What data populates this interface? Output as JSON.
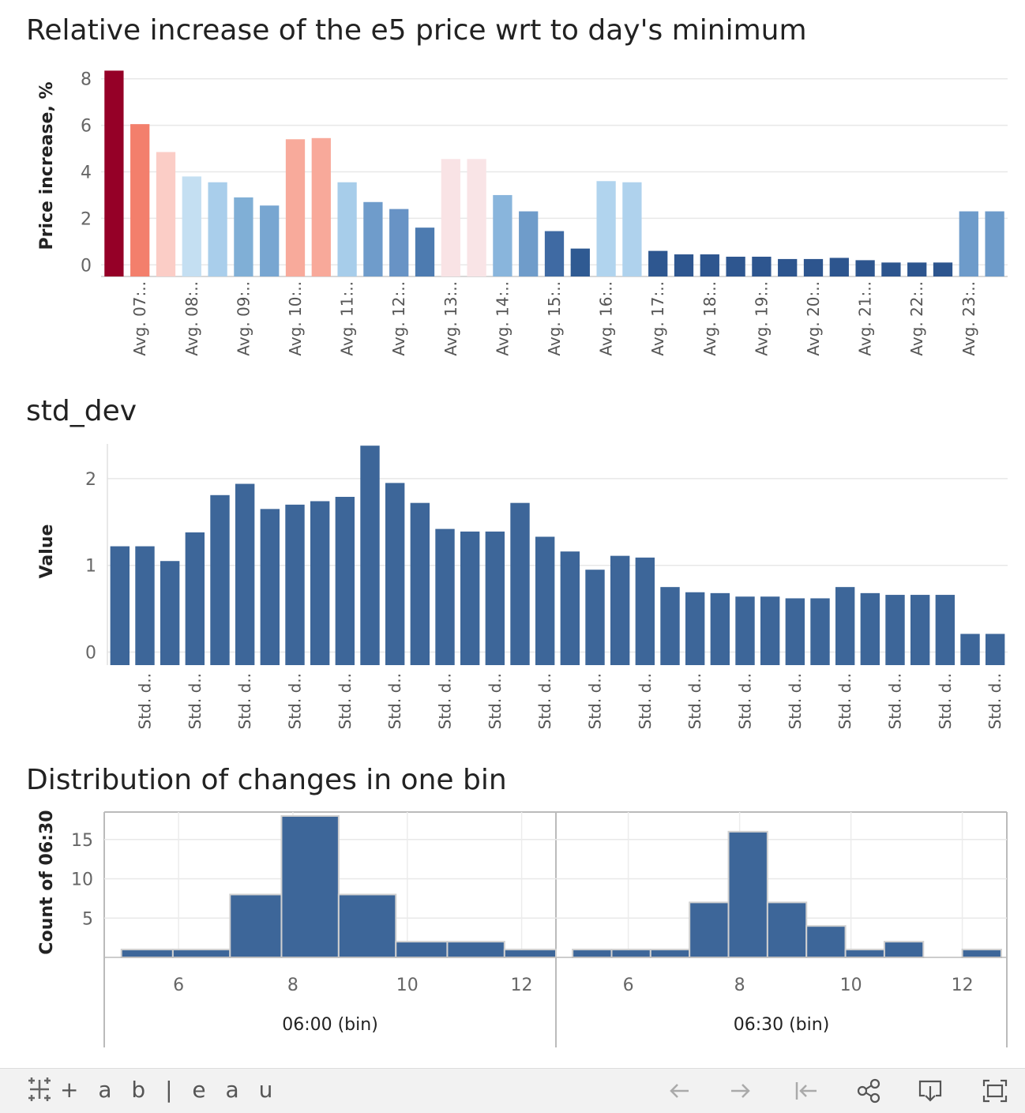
{
  "charts": {
    "title1": "Relative increase of the e5 price wrt to day's minimum",
    "title2": "std_dev",
    "title3": "Distribution of changes in one bin"
  },
  "chart_data": [
    {
      "type": "bar",
      "title": "Relative increase of the e5 price wrt to day's minimum",
      "ylabel": "Price increase, %",
      "ylim": [
        -0.5,
        8.5
      ],
      "yticks": [
        0,
        2,
        4,
        6,
        8
      ],
      "grid": true,
      "tick_labels": [
        "Avg. 07:..",
        "Avg. 08:..",
        "Avg. 09:..",
        "Avg. 10:..",
        "Avg. 11:..",
        "Avg. 12:..",
        "Avg. 13:..",
        "Avg. 14:..",
        "Avg. 15:..",
        "Avg. 16:..",
        "Avg. 17:..",
        "Avg. 18:..",
        "Avg. 19:..",
        "Avg. 20:..",
        "Avg. 21:..",
        "Avg. 22:..",
        "Avg. 23:.."
      ],
      "values": [
        8.35,
        6.05,
        4.85,
        3.8,
        3.55,
        2.9,
        2.55,
        5.4,
        5.45,
        3.55,
        2.7,
        2.4,
        1.6,
        4.55,
        4.55,
        3.0,
        2.3,
        1.45,
        0.7,
        3.6,
        3.55,
        0.6,
        0.45,
        0.45,
        0.35,
        0.35,
        0.25,
        0.25,
        0.3,
        0.2,
        0.1,
        0.1,
        0.1,
        2.3,
        2.3
      ],
      "colors": [
        "#950027",
        "#f37f6c",
        "#fbcdc6",
        "#c4dff2",
        "#a9ceeb",
        "#80afd6",
        "#78a6d1",
        "#f8aa9b",
        "#f8a99a",
        "#a7cdea",
        "#6f9ccb",
        "#6893c5",
        "#4d7bb0",
        "#f9e3e5",
        "#f9e4e6",
        "#89b5dc",
        "#6f9cca",
        "#3f6aa3",
        "#2f5a92",
        "#b1d4ee",
        "#afd2ed",
        "#2e5790",
        "#2e568f",
        "#2e568f",
        "#2e568f",
        "#2e568f",
        "#2d558e",
        "#2d558e",
        "#2d558e",
        "#2d558e",
        "#2d558e",
        "#2d558e",
        "#2d558e",
        "#6d9bca",
        "#6d9bca"
      ]
    },
    {
      "type": "bar",
      "title": "std_dev",
      "ylabel": "Value",
      "ylim": [
        -0.15,
        2.4
      ],
      "yticks": [
        0,
        1,
        2
      ],
      "grid": true,
      "tick_labels": [
        "Std. d..",
        "Std. d..",
        "Std. d..",
        "Std. d..",
        "Std. d..",
        "Std. d..",
        "Std. d..",
        "Std. d..",
        "Std. d..",
        "Std. d..",
        "Std. d..",
        "Std. d..",
        "Std. d..",
        "Std. d..",
        "Std. d..",
        "Std. d..",
        "Std. d..",
        "Std. d.."
      ],
      "values": [
        1.22,
        1.22,
        1.05,
        1.38,
        1.81,
        1.94,
        1.65,
        1.7,
        1.74,
        1.79,
        2.38,
        1.95,
        1.72,
        1.42,
        1.39,
        1.39,
        1.72,
        1.33,
        1.16,
        0.95,
        1.11,
        1.09,
        0.75,
        0.69,
        0.68,
        0.64,
        0.64,
        0.62,
        0.62,
        0.75,
        0.68,
        0.66,
        0.66,
        0.66,
        0.21,
        0.21
      ],
      "color": "#3d6699"
    },
    {
      "type": "bar",
      "title": "Distribution of changes in one bin",
      "ylabel": "Count of 06:30",
      "ylim": [
        0,
        18.5
      ],
      "yticks": [
        5,
        10,
        15
      ],
      "panels": [
        {
          "xlabel": "06:00 (bin)",
          "xticks": [
            6,
            8,
            10,
            12
          ],
          "xlim": [
            4.7,
            12.6
          ],
          "bins": [
            {
              "x0": 5.0,
              "x1": 5.9,
              "count": 1
            },
            {
              "x0": 5.9,
              "x1": 6.9,
              "count": 1
            },
            {
              "x0": 6.9,
              "x1": 7.8,
              "count": 8
            },
            {
              "x0": 7.8,
              "x1": 8.8,
              "count": 18
            },
            {
              "x0": 8.8,
              "x1": 9.8,
              "count": 8
            },
            {
              "x0": 9.8,
              "x1": 10.7,
              "count": 2
            },
            {
              "x0": 10.7,
              "x1": 11.7,
              "count": 2
            },
            {
              "x0": 11.7,
              "x1": 12.6,
              "count": 1
            }
          ]
        },
        {
          "xlabel": "06:30 (bin)",
          "xticks": [
            6,
            8,
            10,
            12
          ],
          "xlim": [
            4.7,
            12.8
          ],
          "bins": [
            {
              "x0": 5.0,
              "x1": 5.7,
              "count": 1
            },
            {
              "x0": 5.7,
              "x1": 6.4,
              "count": 1
            },
            {
              "x0": 6.4,
              "x1": 7.1,
              "count": 1
            },
            {
              "x0": 7.1,
              "x1": 7.8,
              "count": 7
            },
            {
              "x0": 7.8,
              "x1": 8.5,
              "count": 16
            },
            {
              "x0": 8.5,
              "x1": 9.2,
              "count": 7
            },
            {
              "x0": 9.2,
              "x1": 9.9,
              "count": 4
            },
            {
              "x0": 9.9,
              "x1": 10.6,
              "count": 1
            },
            {
              "x0": 10.6,
              "x1": 11.3,
              "count": 2
            },
            {
              "x0": 11.3,
              "x1": 12.0,
              "count": 0
            },
            {
              "x0": 12.0,
              "x1": 12.7,
              "count": 1
            }
          ]
        }
      ],
      "color": "#3d6699"
    }
  ],
  "footer": {
    "logo_text": "+ a b | e a u",
    "icons": [
      "undo-icon",
      "redo-icon",
      "revert-icon",
      "share-icon",
      "download-icon",
      "fullscreen-icon"
    ]
  }
}
